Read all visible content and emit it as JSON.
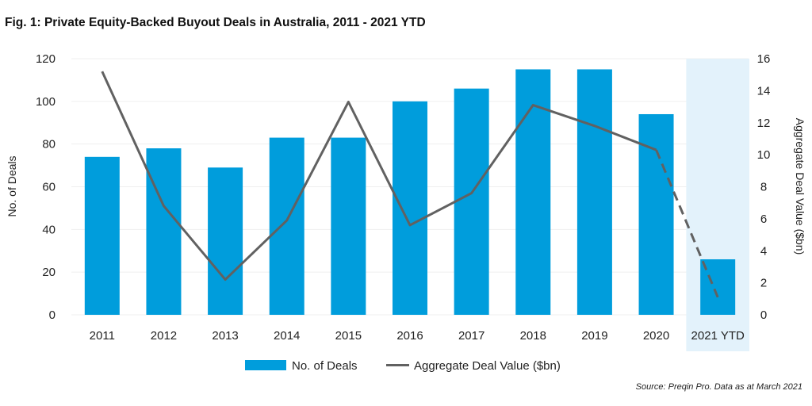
{
  "title": "Fig. 1: Private Equity-Backed Buyout Deals in Australia, 2011 - 2021 YTD",
  "source": "Source: Preqin Pro. Data as at March 2021",
  "colors": {
    "bars": "#009DDC",
    "line": "#616161",
    "highlight": "#E3F2FB",
    "grid": "#EFEFEF"
  },
  "chart_data": {
    "type": "bar",
    "categories": [
      "2011",
      "2012",
      "2013",
      "2014",
      "2015",
      "2016",
      "2017",
      "2018",
      "2019",
      "2020",
      "2021 YTD"
    ],
    "series": [
      {
        "name": "No. of Deals",
        "type": "bar",
        "axis": "left",
        "values": [
          74,
          78,
          69,
          83,
          83,
          100,
          106,
          115,
          115,
          94,
          26
        ]
      },
      {
        "name": "Aggregate Deal Value ($bn)",
        "type": "line",
        "axis": "right",
        "values": [
          15.2,
          6.8,
          2.2,
          5.9,
          13.3,
          5.6,
          7.6,
          13.1,
          11.8,
          10.3,
          1.1
        ],
        "dashed_last_segment": true
      }
    ],
    "ylabel": "No. of Deals",
    "y2label": "Aggregate Deal Value ($bn)",
    "ylim": [
      0,
      120
    ],
    "y2lim": [
      0,
      16
    ],
    "yticks": [
      0,
      20,
      40,
      60,
      80,
      100,
      120
    ],
    "y2ticks": [
      0,
      2,
      4,
      6,
      8,
      10,
      12,
      14,
      16
    ],
    "highlighted_category": "2021 YTD",
    "legend_position": "bottom",
    "grid": true
  }
}
